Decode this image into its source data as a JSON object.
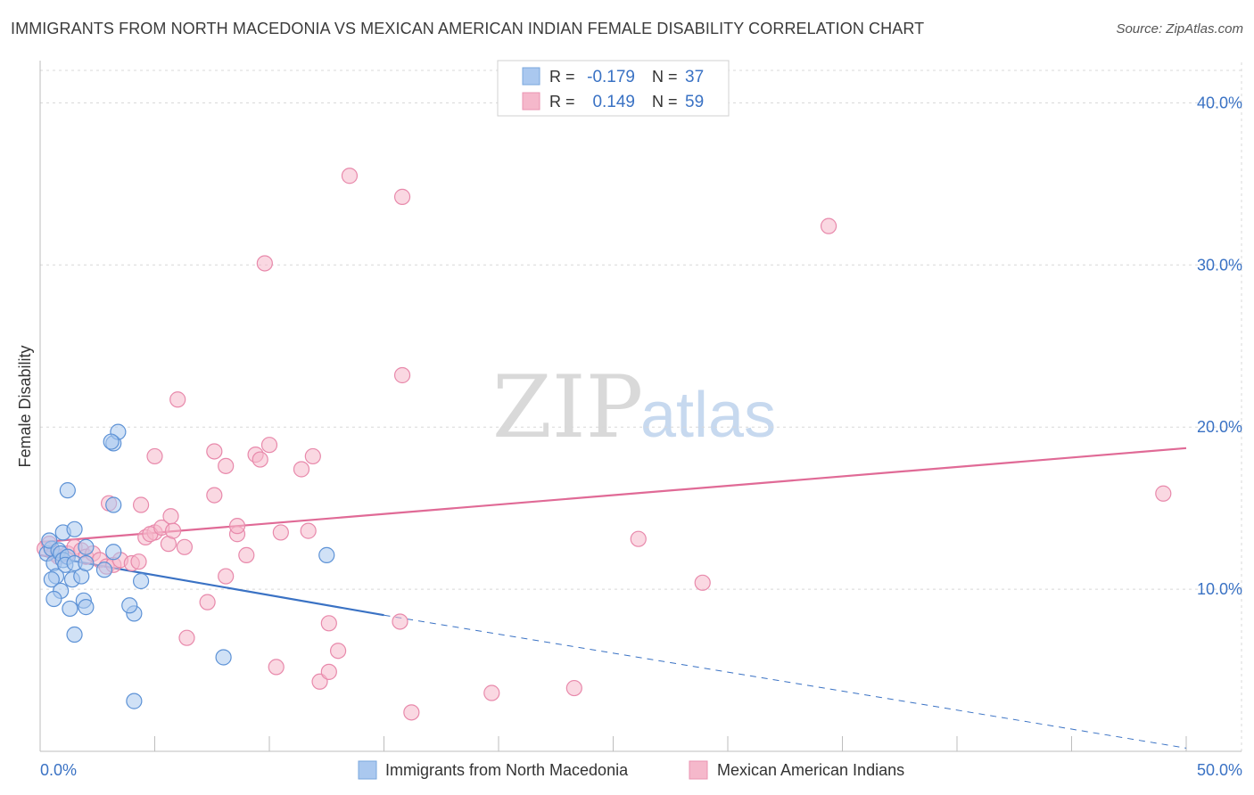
{
  "title": "IMMIGRANTS FROM NORTH MACEDONIA VS MEXICAN AMERICAN INDIAN FEMALE DISABILITY CORRELATION CHART",
  "source": "Source: ZipAtlas.com",
  "watermark": {
    "zip": "ZIP",
    "atlas": "atlas"
  },
  "colors": {
    "blue": "#3a72c4",
    "blue_fill": "#aac8ef",
    "pink": "#e06a96",
    "pink_fill": "#f5b8cb",
    "grid": "#d8d8d8"
  },
  "legend_top": {
    "row1": {
      "r_label": "R =",
      "r_value": "-0.179",
      "n_label": "N =",
      "n_value": "37"
    },
    "row2": {
      "r_label": "R =",
      "r_value": "0.149",
      "n_label": "N =",
      "n_value": "59"
    }
  },
  "chart_data": {
    "type": "scatter",
    "title": "IMMIGRANTS FROM NORTH MACEDONIA VS MEXICAN AMERICAN INDIAN FEMALE DISABILITY CORRELATION CHART",
    "xlabel": "",
    "ylabel": "Female Disability",
    "xlim": [
      0,
      50
    ],
    "ylim": [
      0,
      42
    ],
    "x_tick_labels": [
      "0.0%",
      "50.0%"
    ],
    "y_ticks": [
      10,
      20,
      30,
      40
    ],
    "y_tick_labels": [
      "10.0%",
      "20.0%",
      "30.0%",
      "40.0%"
    ],
    "grid": true,
    "series": [
      {
        "name": "Immigrants from North Macedonia",
        "color": "blue",
        "r": -0.179,
        "n": 37,
        "trend": {
          "x0": 0,
          "y0": 12.1,
          "x1": 15,
          "y1": 8.4,
          "dashed_to_x": 50,
          "dashed_to_y": 0.2
        },
        "points": [
          [
            0.3,
            12.2
          ],
          [
            0.5,
            12.5
          ],
          [
            0.4,
            13.0
          ],
          [
            0.6,
            11.6
          ],
          [
            0.8,
            12.4
          ],
          [
            0.9,
            12.2
          ],
          [
            1.0,
            11.8
          ],
          [
            1.2,
            12.0
          ],
          [
            1.1,
            11.5
          ],
          [
            0.7,
            10.8
          ],
          [
            0.5,
            10.6
          ],
          [
            1.4,
            10.6
          ],
          [
            1.8,
            10.8
          ],
          [
            1.5,
            11.6
          ],
          [
            2.0,
            11.6
          ],
          [
            0.9,
            9.9
          ],
          [
            0.6,
            9.4
          ],
          [
            1.9,
            9.3
          ],
          [
            1.3,
            8.8
          ],
          [
            2.0,
            8.9
          ],
          [
            1.5,
            7.2
          ],
          [
            1.0,
            13.5
          ],
          [
            1.5,
            13.7
          ],
          [
            2.0,
            12.6
          ],
          [
            3.2,
            12.3
          ],
          [
            2.8,
            11.2
          ],
          [
            1.2,
            16.1
          ],
          [
            3.2,
            15.2
          ],
          [
            3.2,
            19.0
          ],
          [
            3.4,
            19.7
          ],
          [
            3.1,
            19.1
          ],
          [
            4.1,
            8.5
          ],
          [
            3.9,
            9.0
          ],
          [
            4.4,
            10.5
          ],
          [
            4.1,
            3.1
          ],
          [
            8.0,
            5.8
          ],
          [
            12.5,
            12.1
          ]
        ]
      },
      {
        "name": "Mexican American Indians",
        "color": "pink",
        "r": 0.149,
        "n": 59,
        "trend": {
          "x0": 0,
          "y0": 12.9,
          "x1": 50,
          "y1": 18.7
        },
        "points": [
          [
            0.2,
            12.5
          ],
          [
            0.4,
            12.8
          ],
          [
            0.6,
            12.2
          ],
          [
            0.8,
            12.0
          ],
          [
            1.2,
            12.2
          ],
          [
            1.5,
            12.6
          ],
          [
            1.8,
            12.4
          ],
          [
            2.0,
            12.0
          ],
          [
            2.3,
            12.2
          ],
          [
            2.6,
            11.8
          ],
          [
            2.9,
            11.4
          ],
          [
            3.2,
            11.5
          ],
          [
            3.5,
            11.8
          ],
          [
            4.0,
            11.6
          ],
          [
            4.3,
            11.7
          ],
          [
            4.6,
            13.2
          ],
          [
            4.4,
            15.2
          ],
          [
            3.0,
            15.3
          ],
          [
            5.0,
            13.5
          ],
          [
            4.8,
            13.4
          ],
          [
            5.3,
            13.8
          ],
          [
            5.6,
            12.8
          ],
          [
            5.8,
            13.6
          ],
          [
            5.7,
            14.5
          ],
          [
            6.3,
            12.6
          ],
          [
            5.0,
            18.2
          ],
          [
            6.0,
            21.7
          ],
          [
            7.6,
            18.5
          ],
          [
            7.6,
            15.8
          ],
          [
            8.1,
            17.6
          ],
          [
            8.6,
            13.4
          ],
          [
            8.6,
            13.9
          ],
          [
            8.1,
            10.8
          ],
          [
            7.3,
            9.2
          ],
          [
            6.4,
            7.0
          ],
          [
            9.4,
            18.3
          ],
          [
            9.6,
            18.0
          ],
          [
            10.0,
            18.9
          ],
          [
            10.5,
            13.5
          ],
          [
            11.4,
            17.4
          ],
          [
            11.7,
            13.6
          ],
          [
            11.9,
            18.2
          ],
          [
            9.0,
            12.1
          ],
          [
            9.8,
            30.1
          ],
          [
            13.5,
            35.5
          ],
          [
            15.8,
            34.2
          ],
          [
            15.8,
            23.2
          ],
          [
            10.3,
            5.2
          ],
          [
            12.2,
            4.3
          ],
          [
            12.6,
            4.9
          ],
          [
            13.0,
            6.2
          ],
          [
            12.6,
            7.9
          ],
          [
            15.7,
            8.0
          ],
          [
            16.2,
            2.4
          ],
          [
            19.7,
            3.6
          ],
          [
            23.3,
            3.9
          ],
          [
            26.1,
            13.1
          ],
          [
            28.9,
            10.4
          ],
          [
            34.4,
            32.4
          ],
          [
            49.0,
            15.9
          ]
        ]
      }
    ]
  }
}
